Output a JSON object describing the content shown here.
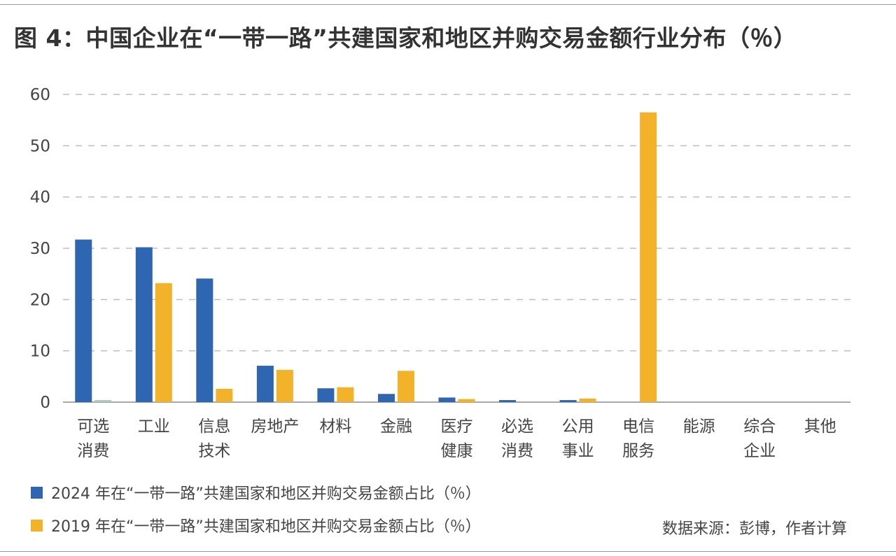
{
  "title": "图 4：中国企业在“一带一路”共建国家和地区并购交易金额行业分布（％）",
  "source": "数据来源：彭博，作者计算",
  "colors": {
    "series_2024": "#2e66b2",
    "series_2019": "#f2b22a",
    "series_2019_small": "#a9c9bf"
  },
  "chart_data": {
    "type": "bar",
    "categories": [
      [
        "可选",
        "消费"
      ],
      [
        "工业"
      ],
      [
        "信息",
        "技术"
      ],
      [
        "房地产"
      ],
      [
        "材料"
      ],
      [
        "金融"
      ],
      [
        "医疗",
        "健康"
      ],
      [
        "必选",
        "消费"
      ],
      [
        "公用",
        "事业"
      ],
      [
        "电信",
        "服务"
      ],
      [
        "能源"
      ],
      [
        "综合",
        "企业"
      ],
      [
        "其他"
      ]
    ],
    "series": [
      {
        "name": "2024 年在“一带一路”共建国家和地区并购交易金额占比（％）",
        "values": [
          31.7,
          30.2,
          24.1,
          7.1,
          2.7,
          1.6,
          0.9,
          0.4,
          0.4,
          0,
          0,
          0,
          0
        ]
      },
      {
        "name": "2019 年在“一带一路”共建国家和地区并购交易金额占比（％）",
        "values": [
          0.4,
          23.2,
          2.6,
          6.3,
          2.9,
          6.1,
          0.6,
          0,
          0.7,
          56.5,
          0,
          0,
          0
        ]
      }
    ],
    "ylim": [
      0,
      60
    ],
    "yticks": [
      0,
      10,
      20,
      30,
      40,
      50,
      60
    ],
    "grid": true,
    "legend": "bottom"
  }
}
